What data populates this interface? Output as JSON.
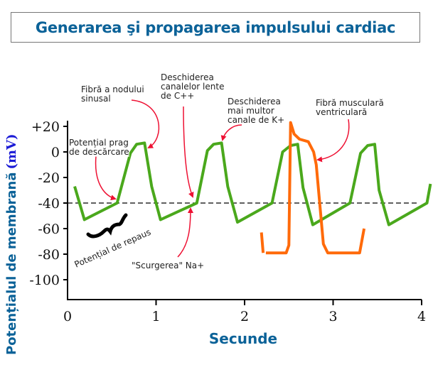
{
  "title": "Generarea şi propagarea impulsului cardiac",
  "chart_data": {
    "type": "line",
    "title": "Generarea şi propagarea impulsului cardiac",
    "xlabel": "Secunde",
    "ylabel": "Potențialul de membrană",
    "ylabel_unit": "(mV)",
    "xlim": [
      0,
      4
    ],
    "ylim": [
      -110,
      25
    ],
    "x_ticks": [
      "0",
      "1",
      "2",
      "3",
      "4"
    ],
    "y_ticks": [
      "+20",
      "0",
      "-20",
      "-40",
      "-60",
      "-80",
      "-100"
    ],
    "y_tick_values": [
      20,
      0,
      -20,
      -40,
      -60,
      -80,
      -100
    ],
    "threshold_line": -40,
    "grid": false,
    "series": [
      {
        "name": "Fibră a nodului sinusal",
        "color": "#4aa81c",
        "points": [
          [
            0.08,
            -27
          ],
          [
            0.19,
            -53
          ],
          [
            0.56,
            -40
          ],
          [
            0.71,
            -1
          ],
          [
            0.78,
            6
          ],
          [
            0.87,
            7
          ],
          [
            0.95,
            -27
          ],
          [
            1.05,
            -53
          ],
          [
            1.46,
            -40
          ],
          [
            1.58,
            1
          ],
          [
            1.65,
            6
          ],
          [
            1.74,
            7
          ],
          [
            1.81,
            -27
          ],
          [
            1.92,
            -55
          ],
          [
            2.31,
            -40
          ],
          [
            2.43,
            0
          ],
          [
            2.52,
            5
          ],
          [
            2.6,
            6
          ],
          [
            2.66,
            -28
          ],
          [
            2.77,
            -57
          ],
          [
            3.19,
            -40
          ],
          [
            3.31,
            -1
          ],
          [
            3.39,
            5
          ],
          [
            3.47,
            6
          ],
          [
            3.52,
            -30
          ],
          [
            3.63,
            -57
          ],
          [
            4.06,
            -40
          ],
          [
            4.1,
            -25
          ]
        ]
      },
      {
        "name": "Fibră musculară ventriculară",
        "color": "#ff6a0a",
        "segments": [
          [
            [
              2.19,
              -63
            ],
            [
              2.21,
              -79
            ]
          ],
          [
            [
              2.24,
              -79
            ],
            [
              2.47,
              -79
            ],
            [
              2.5,
              -73
            ],
            [
              2.52,
              23
            ],
            [
              2.56,
              14
            ],
            [
              2.62,
              10
            ],
            [
              2.72,
              8
            ],
            [
              2.78,
              0
            ],
            [
              2.81,
              -10
            ],
            [
              2.89,
              -72
            ],
            [
              2.94,
              -79
            ],
            [
              3.3,
              -79
            ],
            [
              3.35,
              -60
            ]
          ]
        ]
      }
    ]
  },
  "annotations": {
    "sinus_fiber": "Fibră a nodului\nsinusal",
    "slow_channels": "Deschiderea\ncanalelor lente\nde C++",
    "k_channels": "Deschiderea\nmai multor\ncanale de K+",
    "ventricular_fiber": "Fibră musculară\nventriculară",
    "threshold": "Potențial prag\nde descărcare",
    "resting": "Potențial de repaus",
    "na_leak": "\"Scurgerea\" Na+"
  },
  "colors": {
    "title": "#0b6298",
    "arrow": "#ee1133",
    "unit": "#1b1bd6"
  }
}
